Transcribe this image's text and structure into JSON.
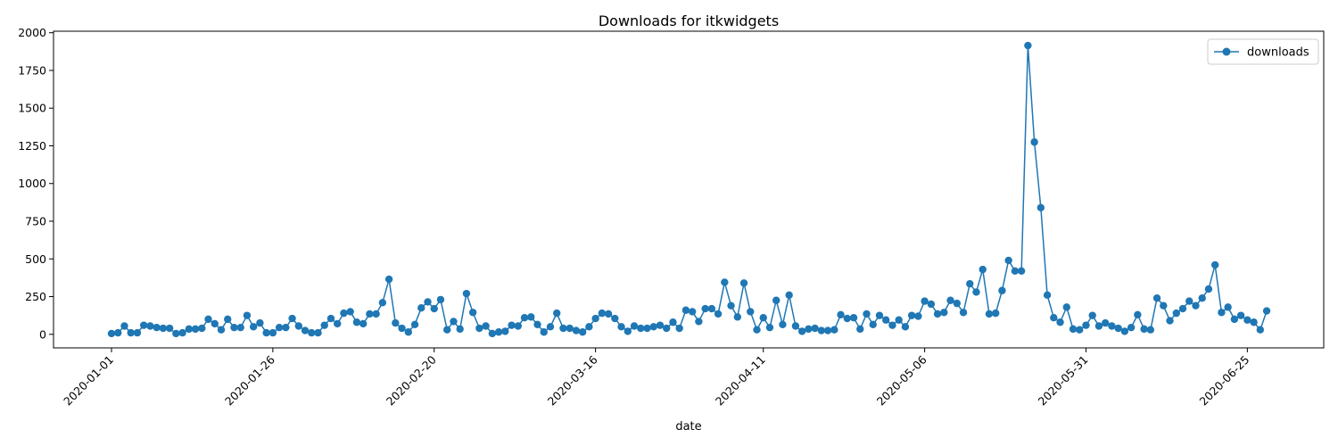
{
  "chart_data": {
    "type": "line",
    "title": "Downloads for itkwidgets",
    "xlabel": "date",
    "ylabel": "",
    "ylim": [
      -90,
      2010
    ],
    "yticks": [
      0,
      250,
      500,
      750,
      1000,
      1250,
      1500,
      1750,
      2000
    ],
    "xticks": [
      "2020-01-01",
      "2020-01-26",
      "2020-02-20",
      "2020-03-16",
      "2020-04-11",
      "2020-05-06",
      "2020-05-31",
      "2020-06-25"
    ],
    "start_date": "2020-01-01",
    "grid": false,
    "legend_position": "upper right",
    "series": [
      {
        "name": "downloads",
        "color": "#1f77b4",
        "marker": "circle",
        "values": [
          5,
          10,
          55,
          10,
          10,
          60,
          55,
          45,
          40,
          40,
          5,
          10,
          35,
          35,
          40,
          100,
          70,
          30,
          100,
          45,
          45,
          125,
          50,
          75,
          10,
          10,
          45,
          45,
          105,
          55,
          25,
          10,
          10,
          60,
          105,
          70,
          140,
          150,
          80,
          70,
          135,
          135,
          210,
          365,
          75,
          40,
          15,
          65,
          175,
          215,
          170,
          230,
          30,
          85,
          35,
          270,
          145,
          40,
          55,
          5,
          15,
          20,
          60,
          55,
          110,
          115,
          65,
          15,
          50,
          140,
          40,
          40,
          25,
          15,
          50,
          105,
          140,
          135,
          105,
          50,
          20,
          55,
          40,
          40,
          50,
          60,
          40,
          80,
          40,
          160,
          150,
          85,
          170,
          170,
          135,
          345,
          190,
          115,
          340,
          150,
          30,
          110,
          45,
          225,
          65,
          260,
          55,
          20,
          35,
          40,
          25,
          25,
          30,
          130,
          105,
          110,
          35,
          135,
          65,
          125,
          95,
          60,
          95,
          50,
          125,
          120,
          220,
          200,
          135,
          145,
          225,
          205,
          145,
          335,
          280,
          430,
          135,
          140,
          290,
          490,
          420,
          420,
          1915,
          1275,
          840,
          260,
          110,
          80,
          180,
          35,
          30,
          60,
          125,
          55,
          75,
          55,
          40,
          20,
          45,
          130,
          35,
          30,
          240,
          190,
          90,
          140,
          170,
          220,
          190,
          240,
          300,
          460,
          145,
          180,
          100,
          125,
          95,
          80,
          30,
          155
        ]
      }
    ]
  }
}
